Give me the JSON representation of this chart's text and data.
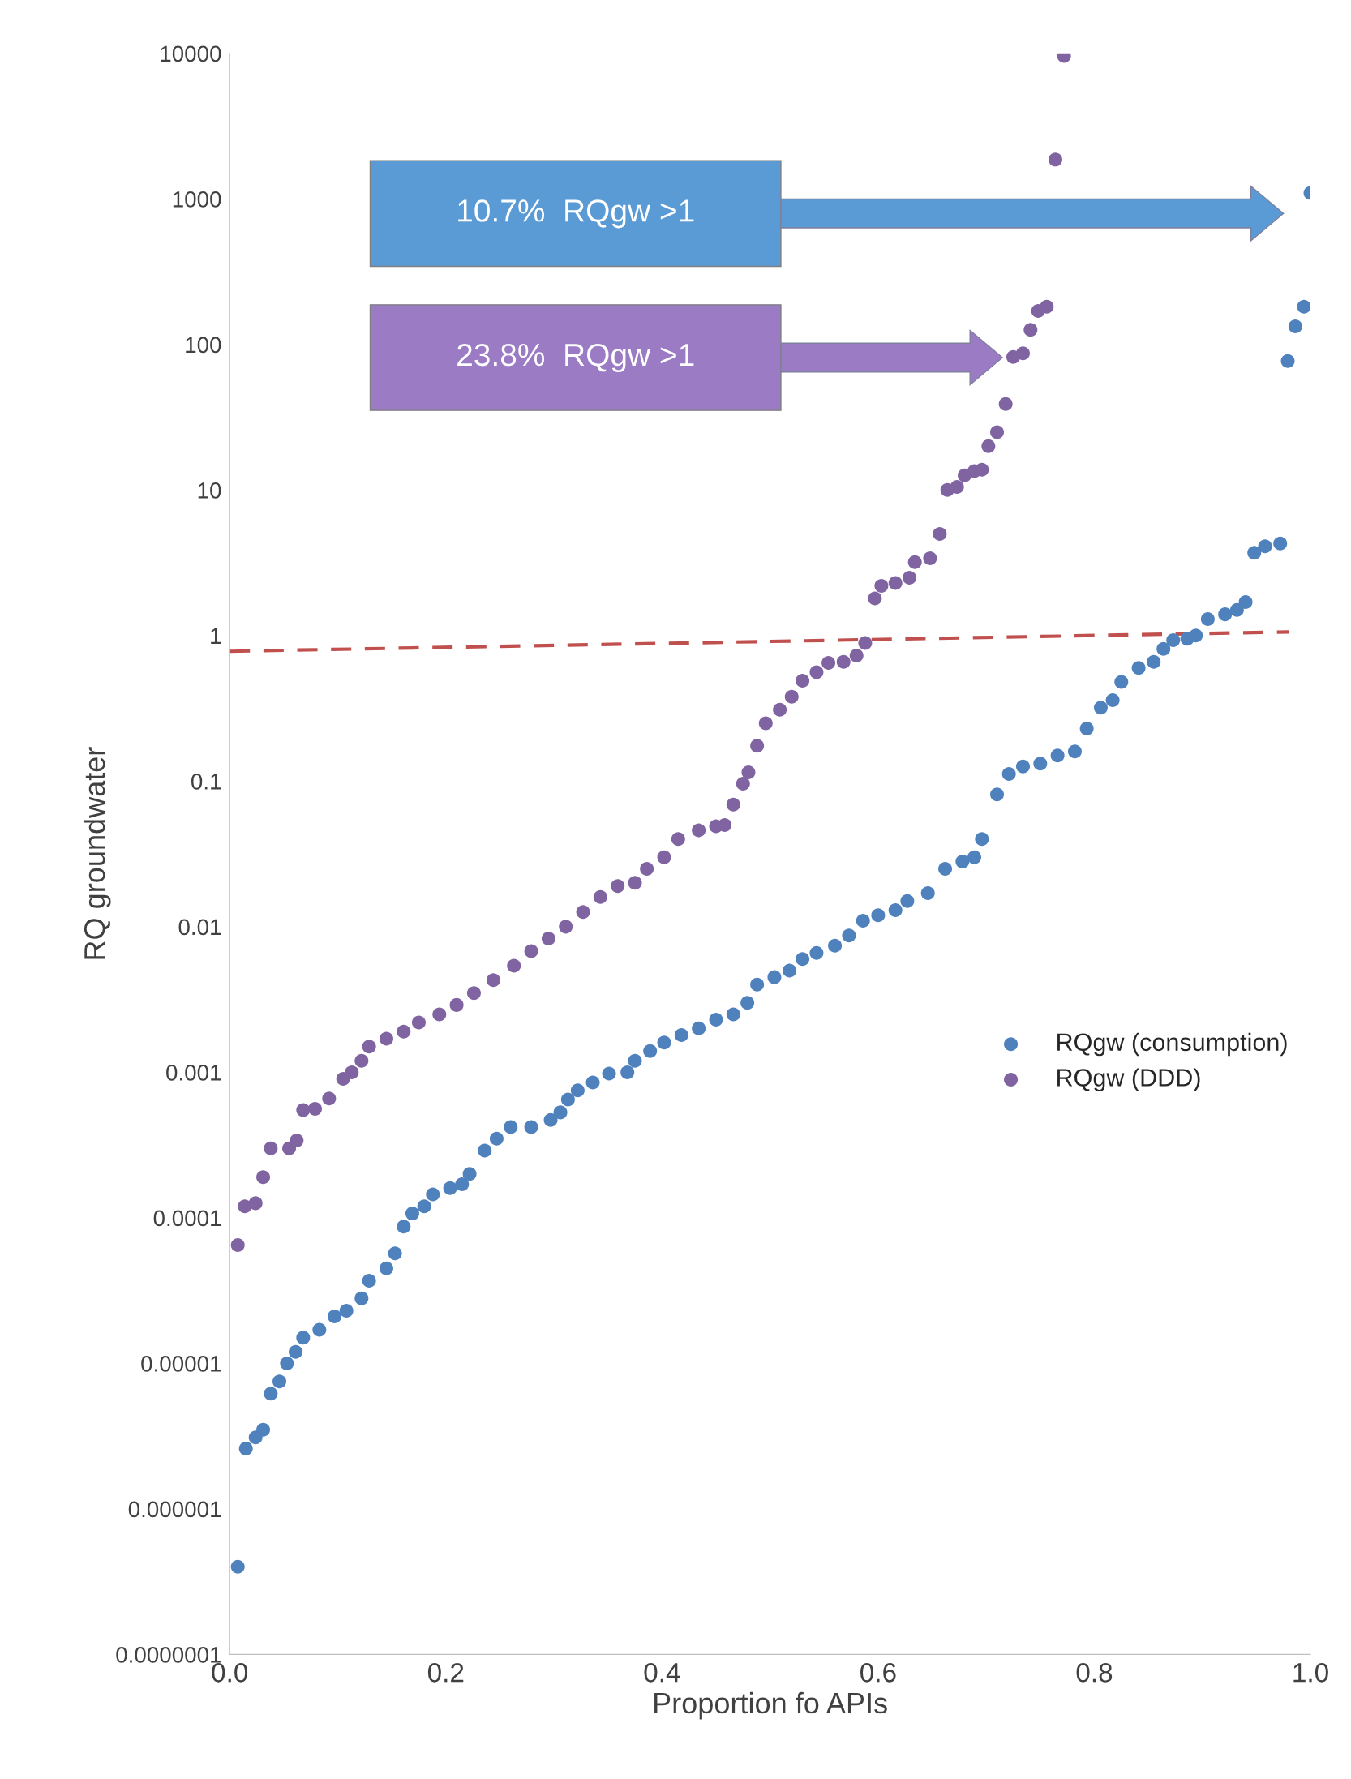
{
  "chart_data": {
    "type": "scatter",
    "xlabel": "Proportion fo APIs",
    "ylabel": "RQ groundwater",
    "log": "y",
    "grid": false,
    "legend": "right",
    "marker": "circle",
    "xlim": [
      0.0,
      1.0
    ],
    "xticks": [
      {
        "value": 0,
        "label": "0.0"
      },
      0.2,
      0.4,
      0.6,
      0.8,
      {
        "value": 1,
        "label": "1.0"
      }
    ],
    "ylim": [
      1e-07,
      10000
    ],
    "yticks": [
      {
        "value": 1e-07,
        "label": "0.0000001"
      },
      {
        "value": 1e-06,
        "label": "0.000001"
      },
      {
        "value": 1e-05,
        "label": "0.00001"
      },
      {
        "value": 0.0001,
        "label": "0.0001"
      },
      {
        "value": 0.001,
        "label": "0.001"
      },
      {
        "value": 0.01,
        "label": "0.01"
      },
      {
        "value": 0.1,
        "label": "0.1"
      },
      {
        "value": 1,
        "label": "1"
      },
      {
        "value": 10,
        "label": "10"
      },
      {
        "value": 100,
        "label": "100"
      },
      {
        "value": 1000,
        "label": "1000"
      },
      {
        "value": 10000,
        "label": "10000"
      }
    ],
    "annotations": [
      "10.7%  RQgw >1",
      "23.8%  RQgw >1"
    ],
    "series": [
      {
        "name": "RQgw (consumption)",
        "color": "#4f81bd",
        "x": [
          0.0075,
          0.015,
          0.024,
          0.031,
          0.038,
          0.046,
          0.053,
          0.061,
          0.068,
          0.083,
          0.097,
          0.108,
          0.122,
          0.129,
          0.145,
          0.153,
          0.161,
          0.169,
          0.18,
          0.188,
          0.204,
          0.215,
          0.222,
          0.236,
          0.247,
          0.26,
          0.279,
          0.297,
          0.306,
          0.313,
          0.322,
          0.336,
          0.351,
          0.368,
          0.375,
          0.389,
          0.402,
          0.418,
          0.434,
          0.45,
          0.466,
          0.479,
          0.488,
          0.504,
          0.518,
          0.53,
          0.543,
          0.56,
          0.573,
          0.586,
          0.6,
          0.616,
          0.627,
          0.646,
          0.662,
          0.678,
          0.689,
          0.696,
          0.71,
          0.721,
          0.734,
          0.75,
          0.766,
          0.782,
          0.793,
          0.806,
          0.817,
          0.825,
          0.841,
          0.855,
          0.864,
          0.873,
          0.886,
          0.894,
          0.905,
          0.921,
          0.932,
          0.94,
          0.948,
          0.958,
          0.972,
          0.979,
          0.986,
          0.994,
          1.0
        ],
        "values": [
          4e-07,
          2.6e-06,
          3.1e-06,
          3.5e-06,
          6.2e-06,
          7.5e-06,
          1e-05,
          1.2e-05,
          1.5e-05,
          1.7e-05,
          2.1e-05,
          2.3e-05,
          2.8e-05,
          3.7e-05,
          4.5e-05,
          5.7e-05,
          8.7e-05,
          0.000107,
          0.00012,
          0.000145,
          0.00016,
          0.00017,
          0.0002,
          0.00029,
          0.00035,
          0.00042,
          0.00042,
          0.00047,
          0.00053,
          0.00065,
          0.00075,
          0.00085,
          0.00098,
          0.001,
          0.0012,
          0.0014,
          0.0016,
          0.0018,
          0.002,
          0.0023,
          0.0025,
          0.003,
          0.004,
          0.0045,
          0.005,
          0.006,
          0.0066,
          0.0074,
          0.0087,
          0.011,
          0.012,
          0.013,
          0.015,
          0.017,
          0.025,
          0.028,
          0.03,
          0.04,
          0.081,
          0.112,
          0.126,
          0.132,
          0.15,
          0.16,
          0.23,
          0.32,
          0.36,
          0.48,
          0.6,
          0.66,
          0.81,
          0.93,
          0.95,
          1.0,
          1.3,
          1.4,
          1.5,
          1.7,
          3.7,
          4.1,
          4.3,
          77,
          133,
          182,
          1100
        ]
      },
      {
        "name": "RQgw (DDD)",
        "color": "#8064a2",
        "x": [
          0.0075,
          0.014,
          0.024,
          0.031,
          0.038,
          0.055,
          0.062,
          0.068,
          0.079,
          0.092,
          0.105,
          0.113,
          0.122,
          0.129,
          0.145,
          0.161,
          0.175,
          0.194,
          0.21,
          0.226,
          0.244,
          0.263,
          0.279,
          0.295,
          0.311,
          0.327,
          0.343,
          0.359,
          0.375,
          0.386,
          0.402,
          0.415,
          0.434,
          0.45,
          0.458,
          0.466,
          0.475,
          0.48,
          0.488,
          0.496,
          0.509,
          0.52,
          0.53,
          0.543,
          0.554,
          0.568,
          0.58,
          0.588,
          0.597,
          0.603,
          0.616,
          0.629,
          0.634,
          0.648,
          0.657,
          0.664,
          0.673,
          0.68,
          0.689,
          0.696,
          0.702,
          0.71,
          0.718,
          0.725,
          0.734,
          0.741,
          0.748,
          0.756,
          0.764,
          0.772
        ],
        "values": [
          6.5e-05,
          0.00012,
          0.000126,
          0.00019,
          0.0003,
          0.0003,
          0.00034,
          0.00055,
          0.00056,
          0.00066,
          0.0009,
          0.001,
          0.0012,
          0.0015,
          0.0017,
          0.0019,
          0.0022,
          0.0025,
          0.0029,
          0.0035,
          0.0043,
          0.0054,
          0.0068,
          0.0083,
          0.01,
          0.0126,
          0.016,
          0.019,
          0.02,
          0.025,
          0.03,
          0.04,
          0.046,
          0.049,
          0.05,
          0.069,
          0.096,
          0.115,
          0.175,
          0.25,
          0.31,
          0.38,
          0.49,
          0.56,
          0.65,
          0.66,
          0.73,
          0.89,
          1.8,
          2.2,
          2.3,
          2.5,
          3.2,
          3.4,
          5,
          10,
          10.5,
          12.6,
          13.5,
          13.8,
          20,
          25,
          39,
          82,
          87,
          126,
          170,
          182,
          1862,
          9600
        ]
      },
      {
        "type": "line",
        "color": "#c0504d",
        "line_style": "dashed",
        "marker": "none",
        "x": [
          0.0,
          0.98
        ],
        "values": [
          0.78,
          1.06
        ]
      }
    ]
  }
}
